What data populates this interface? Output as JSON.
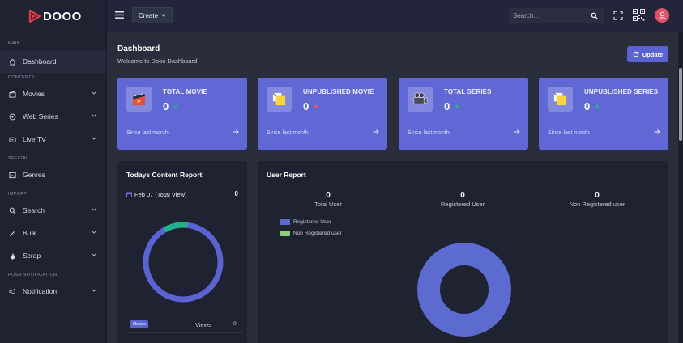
{
  "app": {
    "name": "DOOO"
  },
  "sidebar": {
    "sections": {
      "main": "MAIN",
      "contents": "CONTENTS",
      "special": "SPECIAL",
      "import": "IMPORT",
      "push": "PUSH NOTIFICATION"
    },
    "items": {
      "dashboard": "Dashboard",
      "movies": "Movies",
      "web_series": "Web Series",
      "live_tv": "Live TV",
      "genres": "Genres",
      "search": "Search",
      "bulk": "Bulk",
      "scrap": "Scrap",
      "notification": "Notification"
    }
  },
  "topbar": {
    "create_label": "Create",
    "search_placeholder": "Search..."
  },
  "page": {
    "title": "Dashboard",
    "subtitle": "Welcome to Dooo Dashboard",
    "update_label": "Update"
  },
  "cards": [
    {
      "title": "TOTAL MOVIE",
      "value": "0",
      "since": "Since last month",
      "icon": "movie-clapper-icon",
      "trend": "up"
    },
    {
      "title": "UNPUBLISHED MOVIE",
      "value": "0",
      "since": "Since last month",
      "icon": "sticky-notes-icon",
      "trend": "down"
    },
    {
      "title": "TOTAL SERIES",
      "value": "0",
      "since": "Since last month",
      "icon": "film-camera-icon",
      "trend": "up"
    },
    {
      "title": "UNPUBLISHED SERIES",
      "value": "0",
      "since": "Since last month",
      "icon": "sticky-notes-icon",
      "trend": "up"
    }
  ],
  "content_report": {
    "title": "Todays Content Report",
    "date_label": "Feb 07 (Total View)",
    "date_value": "0",
    "badge": "Movies",
    "views_label": "Views",
    "views_value": "0"
  },
  "user_report": {
    "title": "User Report",
    "stats": [
      {
        "value": "0",
        "label": "Total User"
      },
      {
        "value": "0",
        "label": "Registered User"
      },
      {
        "value": "0",
        "label": "Non Registered user"
      }
    ],
    "legend": [
      {
        "label": "Registered User",
        "color": "#5b6bd0"
      },
      {
        "label": "Non Registered user",
        "color": "#8fcf7a"
      }
    ]
  },
  "colors": {
    "accent": "#6068d6",
    "trend_up": "#1fb67f",
    "trend_down": "#e2516a",
    "donut_main": "#5b63d3",
    "donut_accent": "#1fb08c"
  }
}
